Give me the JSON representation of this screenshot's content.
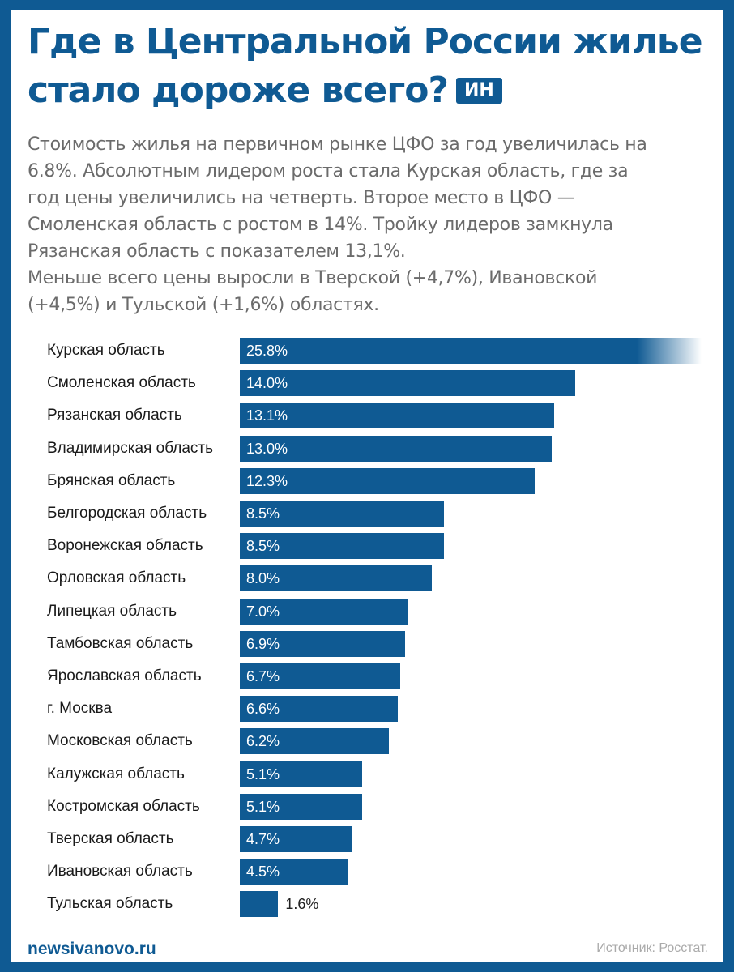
{
  "header": {
    "title": "Где в Центральной России жилье стало дороже всего?",
    "badge": "ИН"
  },
  "intro": {
    "lines": [
      "Стоимость жилья на первичном рынке ЦФО за год увеличилась на",
      "6.8%. Абсолютным лидером роста стала Курская область, где за",
      "год цены увеличились на четверть. Второе место в ЦФО —",
      "Смоленская область с ростом в 14%. Тройку лидеров замкнула",
      "Рязанская область с показателем 13,1%.",
      "Меньше всего цены выросли в Тверской (+4,7%), Ивановской",
      "(+4,5%) и Тульской (+1,6%) областях."
    ]
  },
  "chart_data": {
    "type": "bar",
    "orientation": "horizontal",
    "categories": [
      "Курская область",
      "Смоленская область",
      "Рязанская область",
      "Владимирская область",
      "Брянская область",
      "Белгородская область",
      "Воронежская область",
      "Орловская область",
      "Липецкая область",
      "Тамбовская область",
      "Ярославская область",
      "г. Москва",
      "Московская область",
      "Калужская область",
      "Костромская область",
      "Тверская область",
      "Ивановская область",
      "Тульская область"
    ],
    "values": [
      25.8,
      14.0,
      13.1,
      13.0,
      12.3,
      8.5,
      8.5,
      8.0,
      7.0,
      6.9,
      6.7,
      6.6,
      6.2,
      5.1,
      5.1,
      4.7,
      4.5,
      1.6
    ],
    "value_labels": [
      "25.8%",
      "14.0%",
      "13.1%",
      "13.0%",
      "12.3%",
      "8.5%",
      "8.5%",
      "8.0%",
      "7.0%",
      "6.9%",
      "6.7%",
      "6.6%",
      "6.2%",
      "5.1%",
      "5.1%",
      "4.7%",
      "4.5%",
      "1.6%"
    ],
    "unit": "%",
    "bar_color": "#0f5a93",
    "grid": false,
    "legend": false
  },
  "footer": {
    "site": "newsivanovo.ru",
    "source": "Источник: Росстат."
  },
  "colors": {
    "accent": "#0f5a93",
    "text": "#1a1a1a",
    "muted": "#6b6b6b"
  }
}
